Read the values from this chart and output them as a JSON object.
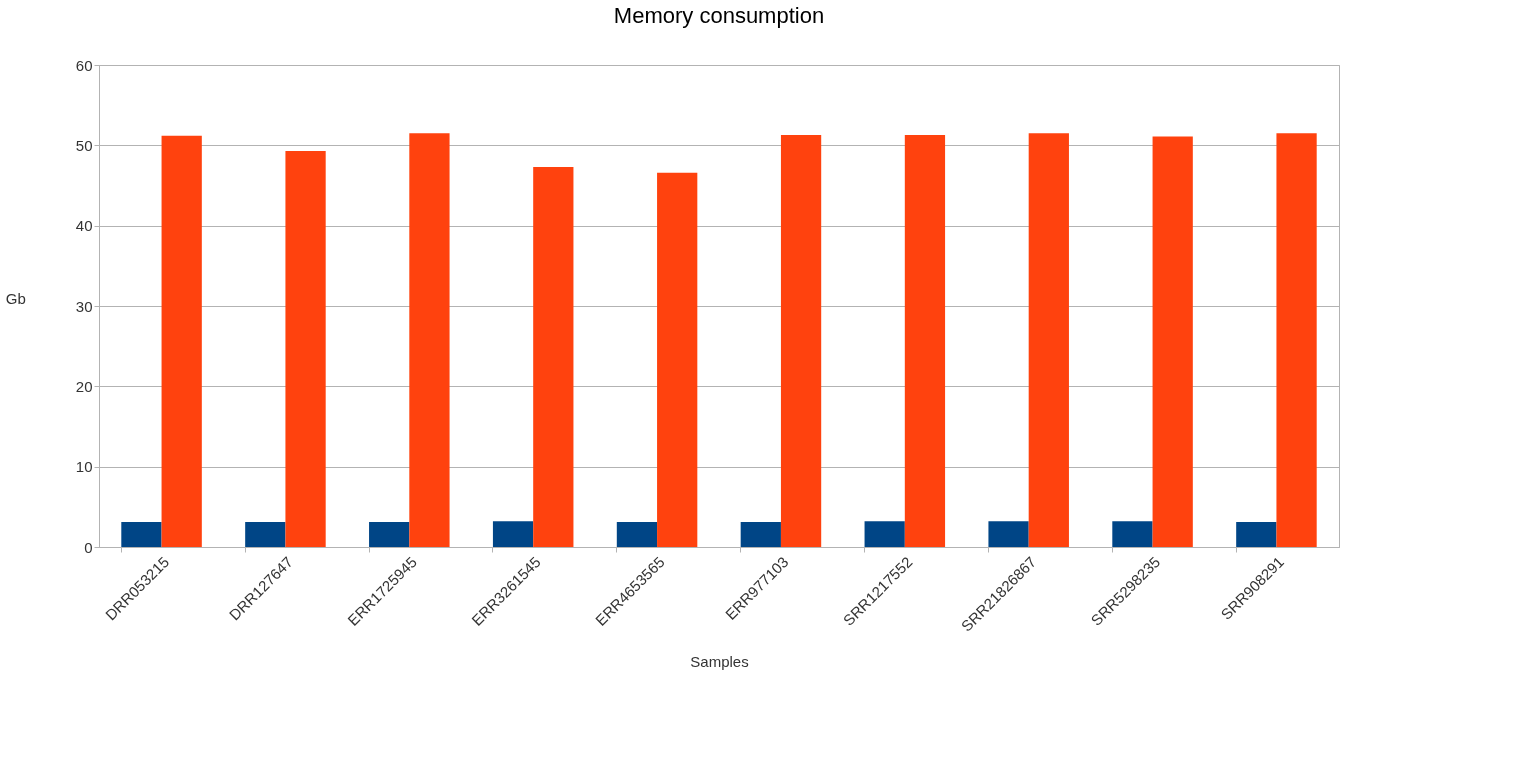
{
  "chart_data": {
    "type": "bar",
    "title": "Memory consumption",
    "xlabel": "Samples",
    "ylabel": "Gb",
    "categories": [
      "DRR053215",
      "DRR127647",
      "ERR1725945",
      "ERR3261545",
      "ERR4653565",
      "ERR977103",
      "SRR1217552",
      "SRR21826867",
      "SRR5298235",
      "SRR908291"
    ],
    "series": [
      {
        "color": "#004586",
        "values": [
          3.1,
          3.1,
          3.1,
          3.2,
          3.1,
          3.1,
          3.2,
          3.2,
          3.2,
          3.1
        ]
      },
      {
        "color": "#ff420e",
        "values": [
          51.2,
          49.3,
          51.5,
          47.3,
          46.6,
          51.3,
          51.3,
          51.5,
          51.1,
          51.5
        ]
      }
    ],
    "ylim": [
      0,
      60
    ],
    "yticks": [
      0,
      10,
      20,
      30,
      40,
      50,
      60
    ],
    "grid": "y"
  }
}
